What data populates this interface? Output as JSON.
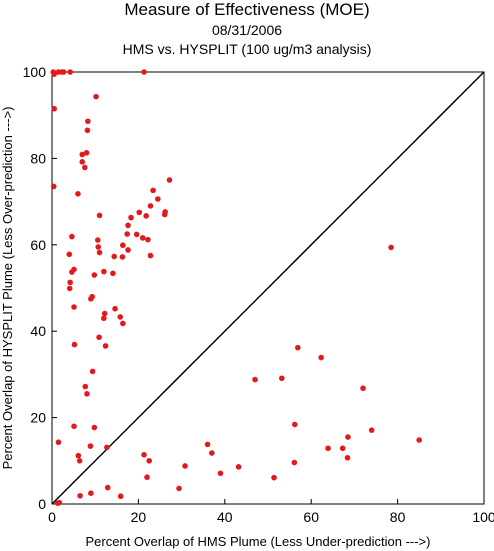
{
  "title": "Measure of Effectiveness (MOE)",
  "subtitle_date": "08/31/2006",
  "subtitle_analysis": "HMS vs. HYSPLIT  (100 ug/m3 analysis)",
  "colors": {
    "point": "#e31a1c",
    "axis": "#000000",
    "diagonal": "#000000"
  },
  "chart_data": {
    "type": "scatter",
    "title": "Measure of Effectiveness (MOE)",
    "xlabel": "Percent Overlap of HMS Plume (Less Under-prediction --->)",
    "ylabel": "Percent Overlap of HYSPLIT Plume (Less Over-prediction --->)",
    "xlim": [
      0,
      100
    ],
    "ylim": [
      0,
      100
    ],
    "xticks": [
      "0",
      "20",
      "40",
      "60",
      "80",
      "100"
    ],
    "yticks": [
      "0",
      "20",
      "40",
      "60",
      "80",
      "100"
    ],
    "reference_line": "y = x",
    "grid": false,
    "points": [
      [
        0.3,
        100
      ],
      [
        0.5,
        99.5
      ],
      [
        1.5,
        100
      ],
      [
        2.3,
        100
      ],
      [
        2.7,
        100
      ],
      [
        4.2,
        100
      ],
      [
        21.3,
        100
      ],
      [
        0.5,
        91.5
      ],
      [
        10.2,
        94.3
      ],
      [
        8.3,
        88.6
      ],
      [
        8.2,
        86.5
      ],
      [
        7.0,
        80.9
      ],
      [
        8.0,
        81.3
      ],
      [
        7.0,
        79.2
      ],
      [
        7.6,
        77.9
      ],
      [
        0.4,
        73.5
      ],
      [
        6.0,
        71.8
      ],
      [
        27.2,
        75.0
      ],
      [
        23.4,
        72.6
      ],
      [
        24.5,
        70.6
      ],
      [
        22.8,
        69.0
      ],
      [
        20.2,
        67.5
      ],
      [
        26.1,
        67.0
      ],
      [
        26.2,
        67.6
      ],
      [
        11.0,
        66.8
      ],
      [
        18.3,
        66.3
      ],
      [
        21.8,
        66.7
      ],
      [
        17.6,
        64.5
      ],
      [
        4.6,
        61.9
      ],
      [
        10.6,
        61.1
      ],
      [
        17.4,
        62.5
      ],
      [
        19.6,
        62.4
      ],
      [
        21.0,
        61.6
      ],
      [
        22.2,
        61.2
      ],
      [
        16.4,
        59.9
      ],
      [
        10.7,
        59.5
      ],
      [
        11.0,
        58.2
      ],
      [
        17.6,
        58.8
      ],
      [
        4.0,
        57.8
      ],
      [
        14.4,
        57.3
      ],
      [
        22.8,
        57.5
      ],
      [
        16.3,
        57.2
      ],
      [
        5.1,
        54.3
      ],
      [
        4.6,
        53.7
      ],
      [
        12.0,
        53.8
      ],
      [
        14.1,
        53.4
      ],
      [
        9.8,
        53.0
      ],
      [
        4.2,
        51.3
      ],
      [
        4.1,
        49.9
      ],
      [
        9.3,
        48.0
      ],
      [
        9.0,
        47.5
      ],
      [
        5.1,
        45.6
      ],
      [
        14.6,
        45.2
      ],
      [
        12.2,
        44.1
      ],
      [
        15.8,
        43.3
      ],
      [
        12.0,
        43.0
      ],
      [
        16.4,
        41.8
      ],
      [
        10.9,
        38.6
      ],
      [
        5.2,
        36.9
      ],
      [
        12.4,
        36.6
      ],
      [
        78.5,
        59.4
      ],
      [
        9.4,
        30.7
      ],
      [
        7.7,
        27.2
      ],
      [
        8.1,
        25.5
      ],
      [
        56.9,
        36.2
      ],
      [
        62.3,
        33.9
      ],
      [
        47.0,
        28.8
      ],
      [
        53.2,
        29.1
      ],
      [
        72.0,
        26.8
      ],
      [
        5.1,
        18.0
      ],
      [
        9.8,
        17.7
      ],
      [
        56.2,
        18.4
      ],
      [
        74.0,
        17.1
      ],
      [
        1.5,
        14.3
      ],
      [
        8.9,
        13.4
      ],
      [
        12.7,
        13.1
      ],
      [
        36.0,
        13.8
      ],
      [
        67.3,
        12.9
      ],
      [
        68.5,
        15.5
      ],
      [
        85.0,
        14.8
      ],
      [
        6.1,
        11.2
      ],
      [
        6.4,
        10.0
      ],
      [
        21.3,
        11.4
      ],
      [
        22.5,
        10.0
      ],
      [
        37.0,
        11.8
      ],
      [
        30.8,
        8.8
      ],
      [
        43.2,
        8.6
      ],
      [
        56.1,
        9.6
      ],
      [
        68.4,
        10.7
      ],
      [
        63.9,
        12.9
      ],
      [
        39.0,
        7.1
      ],
      [
        51.4,
        6.1
      ],
      [
        12.9,
        3.8
      ],
      [
        22.0,
        6.2
      ],
      [
        29.4,
        3.6
      ],
      [
        6.5,
        1.9
      ],
      [
        9.0,
        2.5
      ],
      [
        15.9,
        1.8
      ],
      [
        1.3,
        0.2
      ],
      [
        1.7,
        0.3
      ]
    ]
  }
}
